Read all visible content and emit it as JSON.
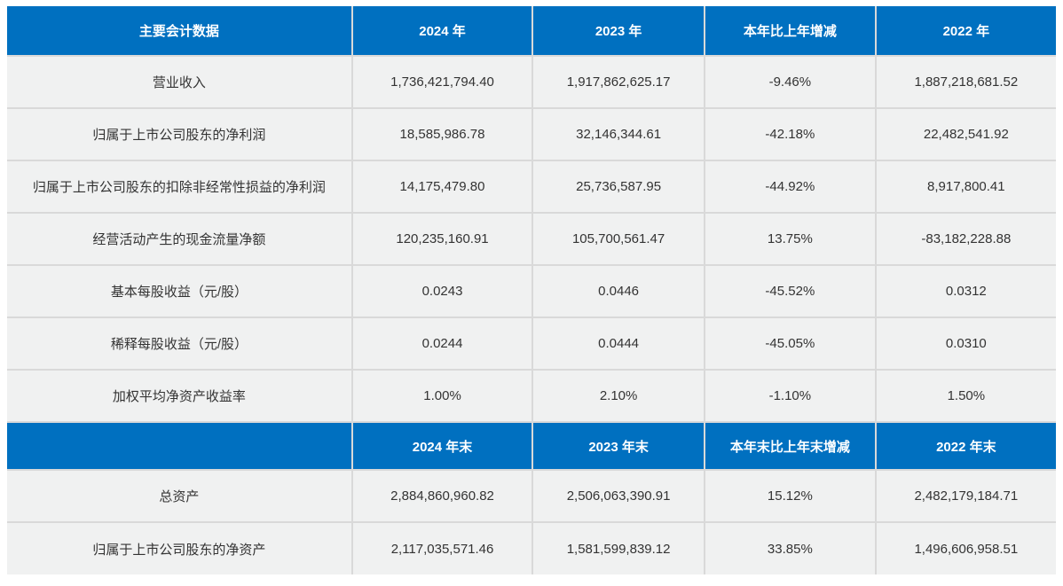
{
  "colors": {
    "header_bg": "#0070C0",
    "header_text": "#FFFFFF",
    "row_bg": "#F0F1F1",
    "grid_line": "#D9D9D9",
    "body_text": "#333333"
  },
  "table": {
    "section1": {
      "header": [
        "主要会计数据",
        "2024 年",
        "2023 年",
        "本年比上年增减",
        "2022 年"
      ],
      "rows": [
        {
          "label": "营业收入",
          "cells": [
            "1,736,421,794.40",
            "1,917,862,625.17",
            "-9.46%",
            "1,887,218,681.52"
          ]
        },
        {
          "label": "归属于上市公司股东的净利润",
          "cells": [
            "18,585,986.78",
            "32,146,344.61",
            "-42.18%",
            "22,482,541.92"
          ]
        },
        {
          "label": "归属于上市公司股东的扣除非经常性损益的净利润",
          "cells": [
            "14,175,479.80",
            "25,736,587.95",
            "-44.92%",
            "8,917,800.41"
          ]
        },
        {
          "label": "经营活动产生的现金流量净额",
          "cells": [
            "120,235,160.91",
            "105,700,561.47",
            "13.75%",
            "-83,182,228.88"
          ]
        },
        {
          "label": "基本每股收益（元/股）",
          "cells": [
            "0.0243",
            "0.0446",
            "-45.52%",
            "0.0312"
          ]
        },
        {
          "label": "稀释每股收益（元/股）",
          "cells": [
            "0.0244",
            "0.0444",
            "-45.05%",
            "0.0310"
          ]
        },
        {
          "label": "加权平均净资产收益率",
          "cells": [
            "1.00%",
            "2.10%",
            "-1.10%",
            "1.50%"
          ]
        }
      ]
    },
    "section2": {
      "header": [
        "",
        "2024 年末",
        "2023 年末",
        "本年末比上年末增减",
        "2022 年末"
      ],
      "rows": [
        {
          "label": "总资产",
          "cells": [
            "2,884,860,960.82",
            "2,506,063,390.91",
            "15.12%",
            "2,482,179,184.71"
          ]
        },
        {
          "label": "归属于上市公司股东的净资产",
          "cells": [
            "2,117,035,571.46",
            "1,581,599,839.12",
            "33.85%",
            "1,496,606,958.51"
          ]
        }
      ]
    }
  }
}
